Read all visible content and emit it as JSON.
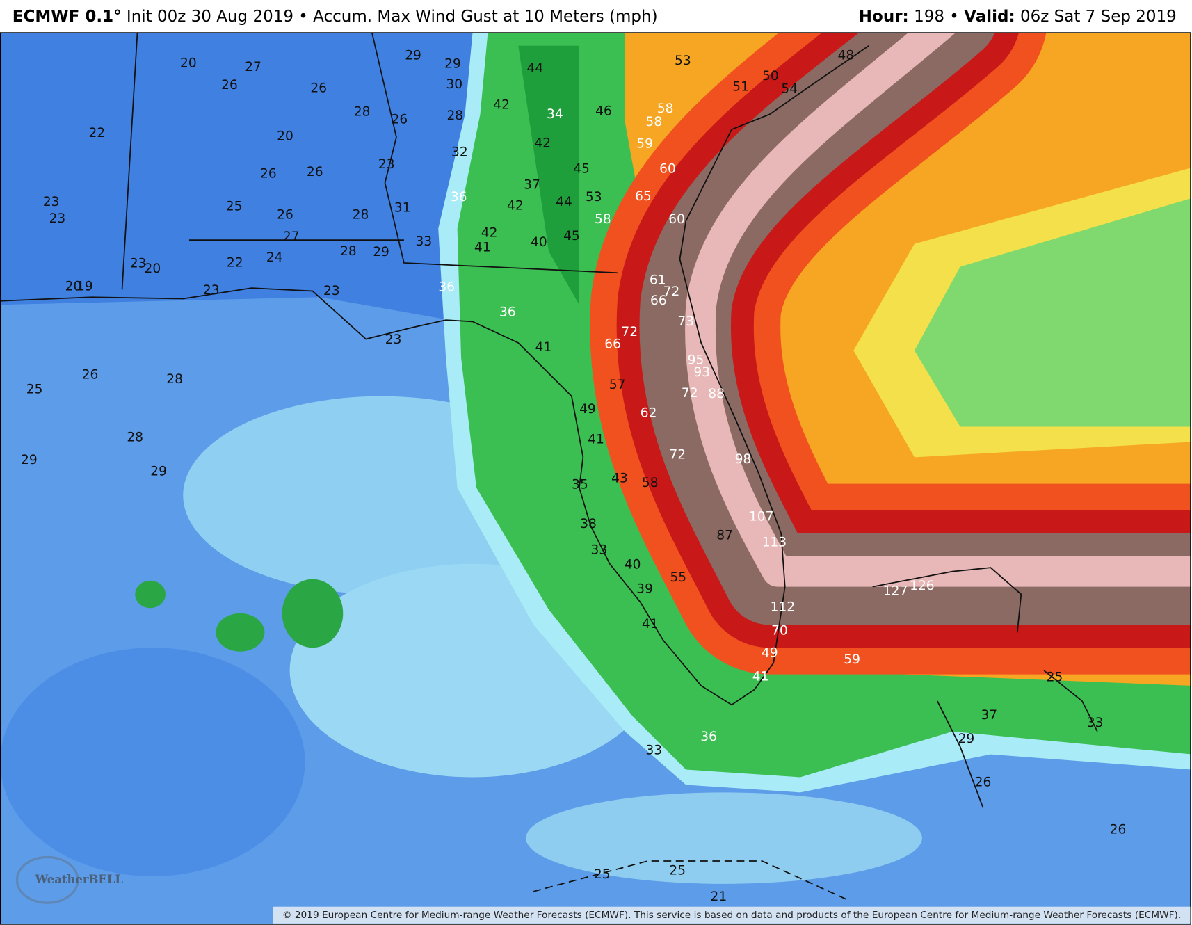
{
  "header": {
    "model": "ECMWF 0.1°",
    "separator": "•",
    "init": "Init 00z 30 Aug 2019",
    "product": "Accum. Max Wind Gust at 10 Meters (mph)",
    "hour_label": "Hour:",
    "hour": "198",
    "valid_label": "Valid:",
    "valid": "06z Sat 7 Sep 2019"
  },
  "map": {
    "labels": [
      20,
      27,
      26,
      26,
      28,
      26,
      29,
      29,
      30,
      28,
      32,
      22,
      20,
      26,
      26,
      23,
      23,
      23,
      25,
      26,
      28,
      31,
      27,
      24,
      28,
      29,
      33,
      23,
      20,
      22,
      20,
      19,
      23,
      23,
      23,
      26,
      28,
      25,
      28,
      29,
      29,
      25,
      25,
      21,
      26,
      29,
      37,
      33,
      25,
      26,
      44,
      42,
      34,
      46,
      42,
      45,
      37,
      42,
      44,
      53,
      42,
      41,
      40,
      45,
      36,
      36,
      36,
      41,
      49,
      41,
      35,
      43,
      38,
      33,
      40,
      39,
      41,
      36,
      33,
      53,
      50,
      51,
      54,
      48,
      58,
      58,
      59,
      60,
      65,
      58,
      60,
      61,
      72,
      66,
      73,
      72,
      66,
      95,
      93,
      88,
      72,
      57,
      62,
      72,
      58,
      98,
      107,
      87,
      113,
      55,
      112,
      70,
      49,
      59,
      41,
      127,
      126
    ]
  },
  "logo": {
    "text": "WeatherBELL"
  },
  "footer": {
    "copyright": "© 2019 European Centre for Medium-range Weather Forecasts (ECMWF). This service is based on data and products of the European Centre for Medium-range Weather Forecasts (ECMWF)."
  }
}
